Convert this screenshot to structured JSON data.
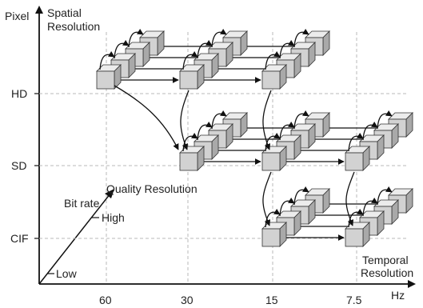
{
  "axes": {
    "y_unit": "Pixel",
    "y_title": [
      "Spatial",
      "Resolution"
    ],
    "x_unit": "Hz",
    "x_title": [
      "Temporal",
      "Resolution"
    ],
    "depth_title": "Quality Resolution",
    "depth_sub": "Bit rate"
  },
  "spatial_levels": [
    "HD",
    "SD",
    "CIF"
  ],
  "temporal_levels": [
    "60",
    "30",
    "15",
    "7.5"
  ],
  "bitrate_levels": [
    "High",
    "Low"
  ],
  "colors": {
    "axis": "#111111",
    "grid": "#b8b8b8",
    "cube_front": "#d2d2d2",
    "cube_top": "#ececec",
    "cube_side": "#a9a9a9",
    "arrow": "#111111"
  }
}
